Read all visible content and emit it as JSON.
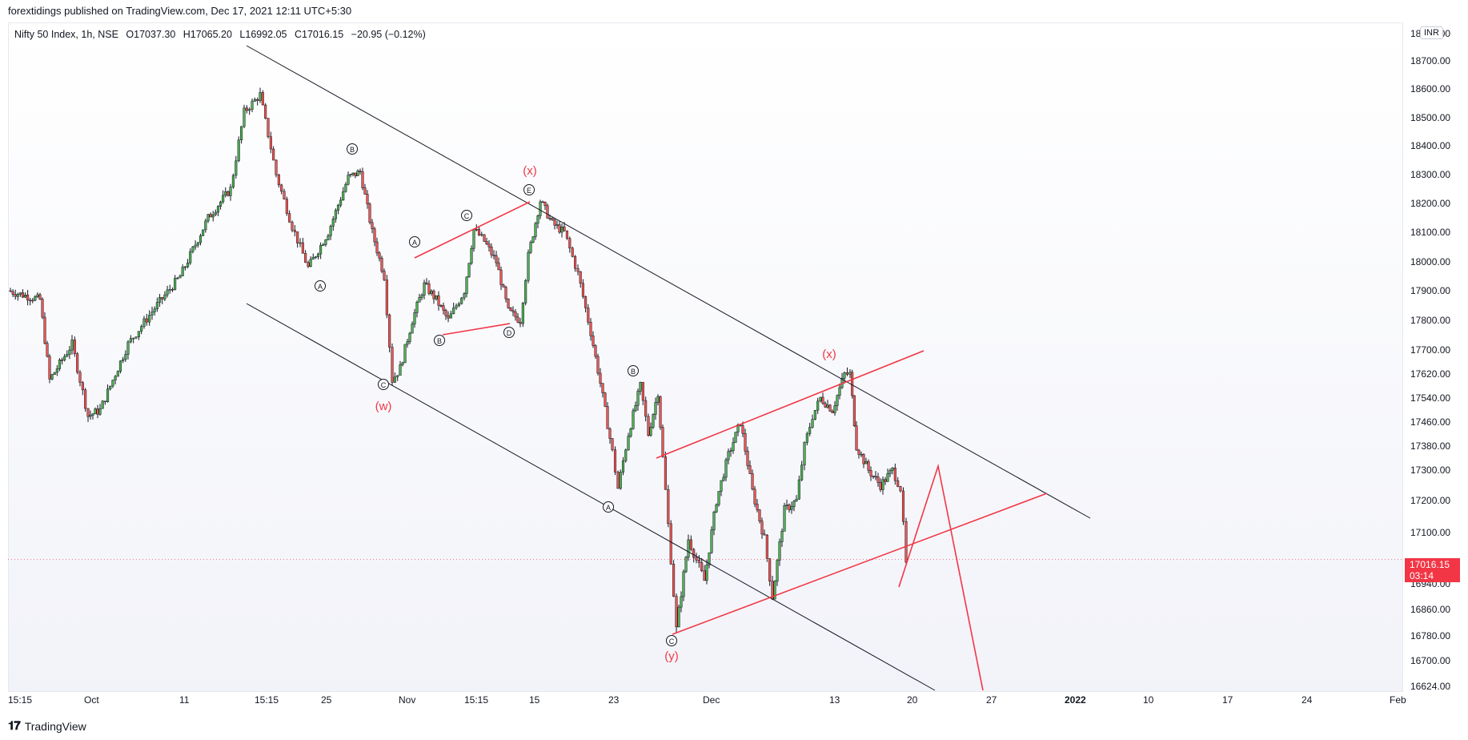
{
  "header": {
    "published": "forextidings published on TradingView.com, Dec 17, 2021 12:11 UTC+5:30"
  },
  "legend": {
    "symbol": "Nifty 50 Index, 1h, NSE",
    "open": "O17037.30",
    "high": "H17065.20",
    "low": "L16992.05",
    "close": "C17016.15",
    "change": "−20.95 (−0.12%)"
  },
  "price_badge": {
    "price": "17016.15",
    "countdown": "03:14"
  },
  "currency_label": "INR",
  "footer": {
    "brand": "TradingView",
    "logo": "tradingview-logo-icon"
  },
  "colors": {
    "up": "#26a69a",
    "up_body": "#4caf50",
    "down": "#ef5350",
    "wick": "#131722",
    "wave": "#f23645",
    "trendline": "#131722",
    "badge": "#f23645"
  },
  "chart_data": {
    "type": "candlestick",
    "symbol": "Nifty 50 Index",
    "timeframe": "1h",
    "exchange": "NSE",
    "ylim": [
      16624,
      18800
    ],
    "y_ticks": [
      "18800.00",
      "18700.00",
      "18600.00",
      "18500.00",
      "18400.00",
      "18300.00",
      "18200.00",
      "18100.00",
      "18000.00",
      "17900.00",
      "17800.00",
      "17700.00",
      "17620.00",
      "17540.00",
      "17460.00",
      "17380.00",
      "17300.00",
      "17200.00",
      "17100.00",
      "16940.00",
      "16860.00",
      "16780.00",
      "16700.00",
      "16624.00"
    ],
    "x_ticks": [
      "15:15",
      "Oct",
      "11",
      "15:15",
      "25",
      "Nov",
      "15:15",
      "15",
      "23",
      "Dec",
      "13",
      "20",
      "27",
      "2022",
      "10",
      "17",
      "24",
      "Feb"
    ],
    "price_path": [
      [
        0,
        17900
      ],
      [
        40,
        17870
      ],
      [
        52,
        17600
      ],
      [
        80,
        17720
      ],
      [
        100,
        17480
      ],
      [
        115,
        17500
      ],
      [
        150,
        17720
      ],
      [
        180,
        17830
      ],
      [
        215,
        17950
      ],
      [
        250,
        18150
      ],
      [
        278,
        18250
      ],
      [
        295,
        18520
      ],
      [
        315,
        18580
      ],
      [
        335,
        18300
      ],
      [
        355,
        18120
      ],
      [
        375,
        17980
      ],
      [
        400,
        18100
      ],
      [
        425,
        18290
      ],
      [
        440,
        18310
      ],
      [
        455,
        18100
      ],
      [
        470,
        17950
      ],
      [
        480,
        17600
      ],
      [
        490,
        17640
      ],
      [
        505,
        17800
      ],
      [
        520,
        17920
      ],
      [
        535,
        17870
      ],
      [
        550,
        17800
      ],
      [
        570,
        17900
      ],
      [
        582,
        18110
      ],
      [
        595,
        18070
      ],
      [
        610,
        18000
      ],
      [
        625,
        17830
      ],
      [
        640,
        17800
      ],
      [
        650,
        18020
      ],
      [
        665,
        18210
      ],
      [
        680,
        18130
      ],
      [
        695,
        18100
      ],
      [
        712,
        17960
      ],
      [
        728,
        17760
      ],
      [
        740,
        17590
      ],
      [
        755,
        17360
      ],
      [
        762,
        17240
      ],
      [
        775,
        17420
      ],
      [
        790,
        17580
      ],
      [
        800,
        17420
      ],
      [
        812,
        17560
      ],
      [
        818,
        17340
      ],
      [
        835,
        16800
      ],
      [
        850,
        17080
      ],
      [
        870,
        16950
      ],
      [
        885,
        17200
      ],
      [
        900,
        17350
      ],
      [
        915,
        17460
      ],
      [
        930,
        17230
      ],
      [
        945,
        17080
      ],
      [
        955,
        16900
      ],
      [
        970,
        17170
      ],
      [
        985,
        17200
      ],
      [
        995,
        17380
      ],
      [
        1005,
        17480
      ],
      [
        1015,
        17540
      ],
      [
        1030,
        17500
      ],
      [
        1045,
        17620
      ],
      [
        1052,
        17620
      ],
      [
        1060,
        17380
      ],
      [
        1075,
        17300
      ],
      [
        1090,
        17250
      ],
      [
        1105,
        17300
      ],
      [
        1115,
        17240
      ],
      [
        1122,
        17000
      ]
    ],
    "last_price": 17016.15,
    "annotations": [
      {
        "text": "Ⓐ",
        "price": 17980
      },
      {
        "text": "Ⓑ",
        "price": 18310
      },
      {
        "text": "Ⓒ",
        "price": 17600
      },
      {
        "text": "(w)",
        "price": 17540
      },
      {
        "text": "Ⓐ",
        "price": 18020
      },
      {
        "text": "Ⓑ",
        "price": 17760
      },
      {
        "text": "Ⓒ",
        "price": 18110
      },
      {
        "text": "Ⓓ",
        "price": 17780
      },
      {
        "text": "Ⓔ",
        "price": 18210
      },
      {
        "text": "(x)",
        "price": 18250
      },
      {
        "text": "Ⓐ",
        "price": 17240
      },
      {
        "text": "Ⓑ",
        "price": 17580
      },
      {
        "text": "Ⓒ",
        "price": 16800
      },
      {
        "text": "(y)",
        "price": 16740
      },
      {
        "text": "(x)",
        "price": 17680
      }
    ]
  }
}
